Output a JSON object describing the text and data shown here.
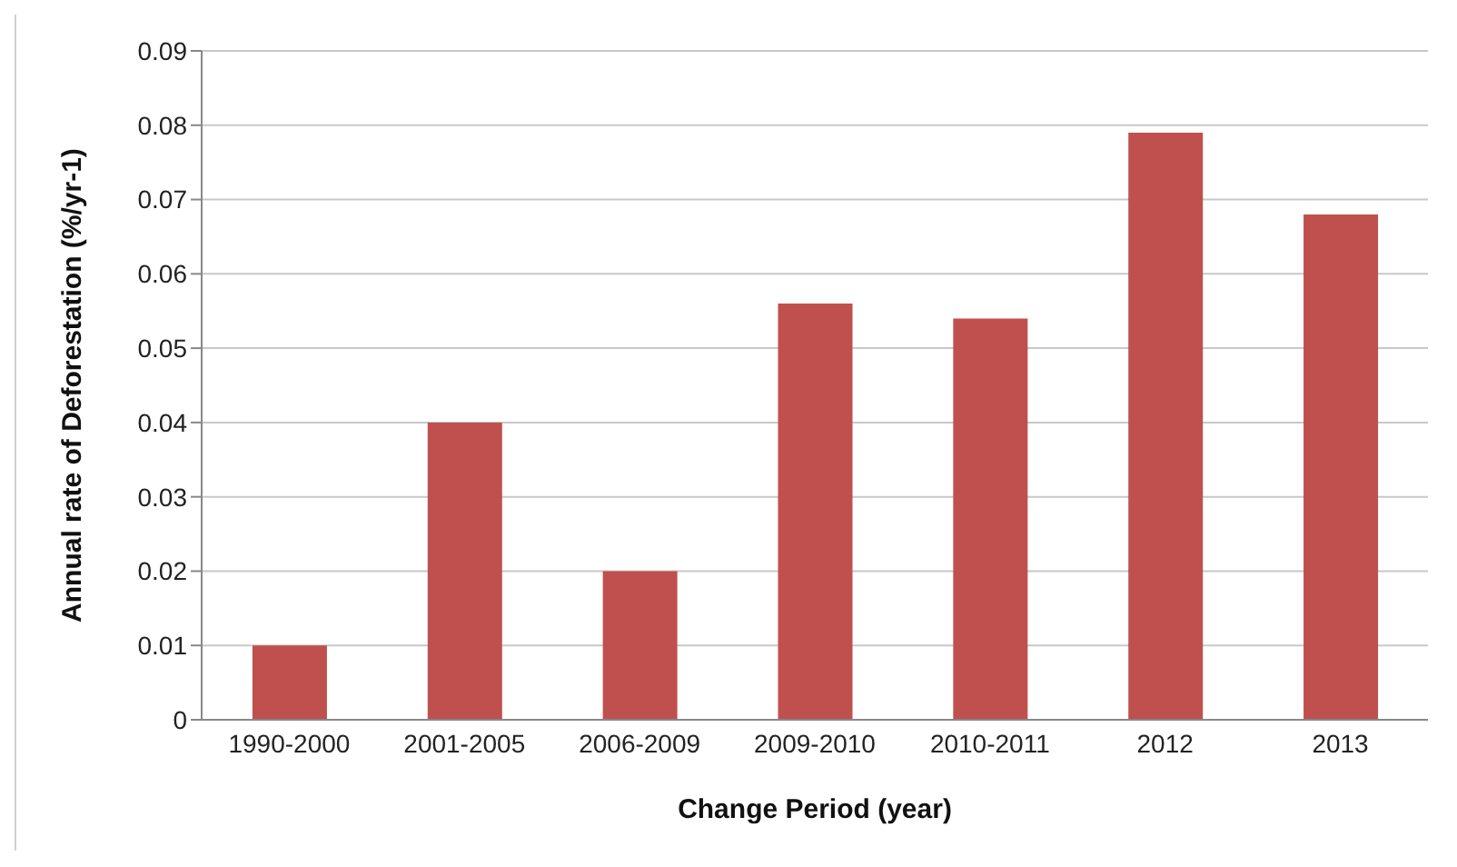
{
  "chart_data": {
    "type": "bar",
    "xlabel": "Change Period (year)",
    "ylabel": "Annual rate of Deforestation (%/yr-1)",
    "categories": [
      "1990-2000",
      "2001-2005",
      "2006-2009",
      "2009-2010",
      "2010-2011",
      "2012",
      "2013"
    ],
    "values": [
      0.01,
      0.04,
      0.02,
      0.056,
      0.054,
      0.079,
      0.068
    ],
    "color": "#c0504d",
    "ylim": [
      0,
      0.09
    ],
    "yticks": [
      0,
      0.01,
      0.02,
      0.03,
      0.04,
      0.05,
      0.06,
      0.07,
      0.08,
      0.09
    ],
    "grid": "y",
    "legend": false
  }
}
